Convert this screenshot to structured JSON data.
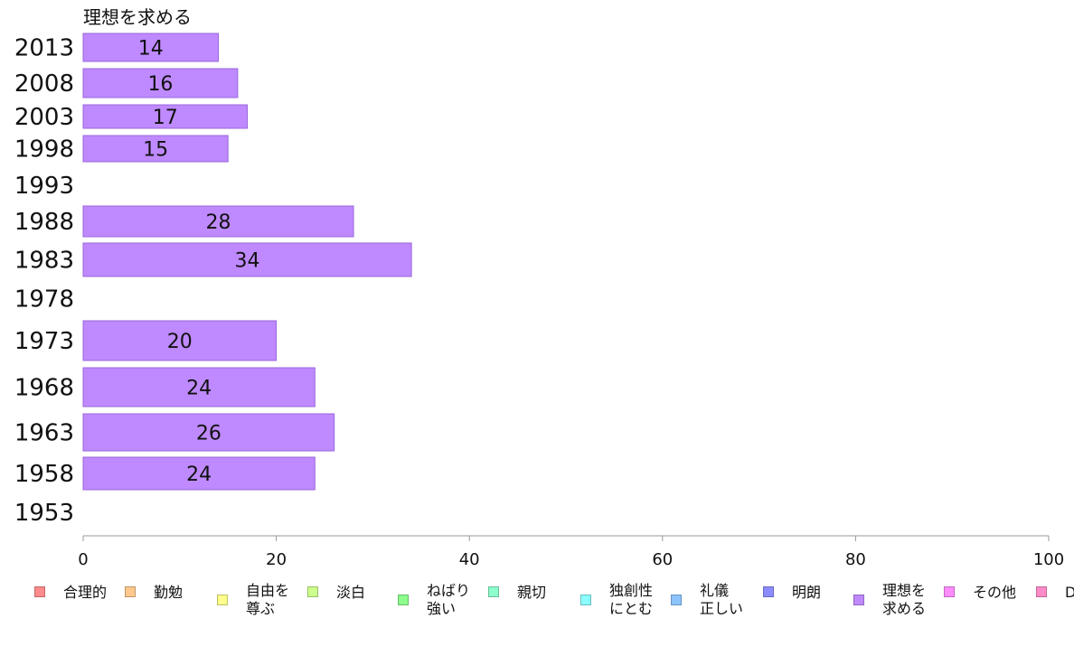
{
  "chart_data": {
    "type": "bar",
    "orientation": "horizontal",
    "title": "理想を求める",
    "categories": [
      "2013",
      "2008",
      "2003",
      "1998",
      "1993",
      "1988",
      "1983",
      "1978",
      "1973",
      "1968",
      "1963",
      "1958",
      "1953"
    ],
    "series": [
      {
        "name": "理想を求める",
        "color": "#bf8aff",
        "values": [
          14,
          16,
          17,
          15,
          null,
          28,
          34,
          null,
          20,
          24,
          26,
          24,
          null
        ],
        "data_labels": [
          "14",
          "16",
          "17",
          "15",
          "",
          "28",
          "34",
          "",
          "20",
          "24",
          "26",
          "24",
          ""
        ]
      }
    ],
    "xlim": [
      0,
      100
    ],
    "xticks": [
      "0",
      "20",
      "40",
      "60",
      "80",
      "100"
    ],
    "grid": false,
    "legend_position": "bottom"
  },
  "legend": [
    {
      "label": "合理的",
      "color": "#ff8c8c"
    },
    {
      "label": "勤勉",
      "color": "#ffc88c"
    },
    {
      "label": "自由を\n尊ぶ",
      "color": "#ffff8c"
    },
    {
      "label": "淡白",
      "color": "#ccff8c"
    },
    {
      "label": "ねばり\n強い",
      "color": "#8cff8c"
    },
    {
      "label": "親切",
      "color": "#8cffcc"
    },
    {
      "label": "独創性\nにとむ",
      "color": "#8cffff"
    },
    {
      "label": "礼儀\n正しい",
      "color": "#8cc4ff"
    },
    {
      "label": "明朗",
      "color": "#8c8cff"
    },
    {
      "label": "理想を\n求める",
      "color": "#bf8aff"
    },
    {
      "label": "その他",
      "color": "#ff8cff"
    },
    {
      "label": "D",
      "color": "#ff8cc8"
    }
  ]
}
